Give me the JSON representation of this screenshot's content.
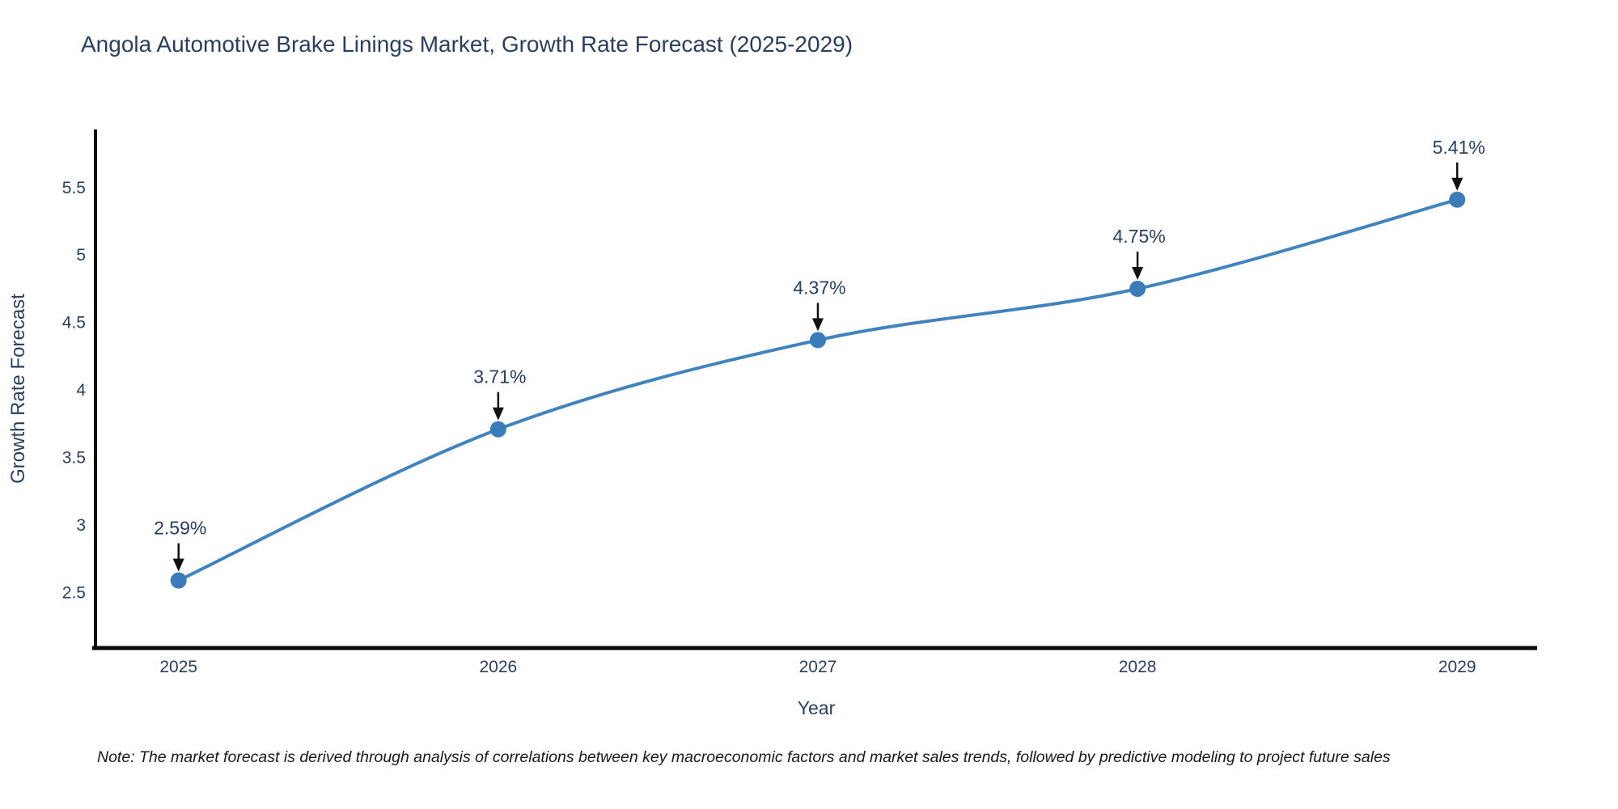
{
  "chart": {
    "title": "Angola Automotive Brake Linings Market, Growth Rate Forecast (2025-2029)",
    "note": "Note: The market forecast is derived through analysis of correlations between key macroeconomic factors and market sales trends, followed by predictive modeling to project future sales"
  },
  "chart_data": {
    "type": "line",
    "title": "Angola Automotive Brake Linings Market, Growth Rate Forecast (2025-2029)",
    "x": [
      2025,
      2026,
      2027,
      2028,
      2029
    ],
    "y": [
      2.59,
      3.71,
      4.37,
      4.75,
      5.41
    ],
    "point_labels": [
      "2.59%",
      "3.71%",
      "4.37%",
      "4.75%",
      "5.41%"
    ],
    "xlabel": "Year",
    "ylabel": "Growth Rate Forecast",
    "xtick_labels": [
      "2025",
      "2026",
      "2027",
      "2028",
      "2029"
    ],
    "ytick_values": [
      2.5,
      3,
      3.5,
      4,
      4.5,
      5,
      5.5
    ],
    "ytick_labels": [
      "2.5",
      "3",
      "3.5",
      "4",
      "4.5",
      "5",
      "5.5"
    ],
    "xlim": [
      2024.74,
      2029.25
    ],
    "ylim": [
      2.09,
      5.93
    ],
    "line_shape": "spline",
    "grid": false,
    "legend": false,
    "colors": {
      "line": "#4083bf",
      "marker": "#3a7cba",
      "axis": "#0a0a0a",
      "tick_text": "#2a3f5f",
      "axis_title_text": "#2a3f5f",
      "annotation_text": "#2a3f5f",
      "annotation_arrow": "#111111",
      "title_text": "#2a3f5f"
    }
  }
}
